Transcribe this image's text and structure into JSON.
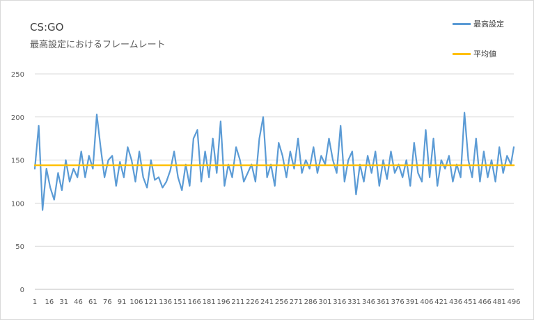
{
  "chart_data": {
    "type": "line",
    "title": "CS:GO",
    "subtitle": "最高設定におけるフレームレート",
    "xlabel": "",
    "ylabel": "",
    "ylim": [
      0,
      250
    ],
    "yticks": [
      0,
      50,
      100,
      150,
      200,
      250
    ],
    "xlim": [
      1,
      496
    ],
    "xticks": [
      1,
      16,
      31,
      46,
      61,
      76,
      91,
      106,
      121,
      136,
      151,
      166,
      181,
      196,
      211,
      226,
      241,
      256,
      271,
      286,
      301,
      316,
      331,
      346,
      361,
      376,
      391,
      406,
      421,
      436,
      451,
      466,
      481,
      496
    ],
    "grid": true,
    "legend_position": "top-right",
    "series": [
      {
        "name": "最高設定",
        "color": "#5b9bd5",
        "x": [
          1,
          5,
          9,
          13,
          17,
          21,
          25,
          29,
          33,
          37,
          41,
          45,
          49,
          53,
          57,
          61,
          65,
          69,
          73,
          77,
          81,
          85,
          89,
          93,
          97,
          101,
          105,
          109,
          113,
          117,
          121,
          125,
          129,
          133,
          137,
          141,
          145,
          149,
          153,
          157,
          161,
          165,
          169,
          173,
          177,
          181,
          185,
          189,
          193,
          197,
          201,
          205,
          209,
          213,
          217,
          221,
          225,
          229,
          233,
          237,
          241,
          245,
          249,
          253,
          257,
          261,
          265,
          269,
          273,
          277,
          281,
          285,
          289,
          293,
          297,
          301,
          305,
          309,
          313,
          317,
          321,
          325,
          329,
          333,
          337,
          341,
          345,
          349,
          353,
          357,
          361,
          365,
          369,
          373,
          377,
          381,
          385,
          389,
          393,
          397,
          401,
          405,
          409,
          413,
          417,
          421,
          425,
          429,
          433,
          437,
          441,
          445,
          449,
          453,
          457,
          461,
          465,
          469,
          473,
          477,
          481,
          485,
          489,
          493,
          496
        ],
        "values": [
          140,
          190,
          92,
          140,
          118,
          104,
          135,
          115,
          150,
          125,
          140,
          130,
          160,
          130,
          155,
          140,
          203,
          165,
          130,
          150,
          155,
          120,
          148,
          130,
          165,
          150,
          125,
          160,
          130,
          118,
          150,
          127,
          130,
          118,
          125,
          138,
          160,
          130,
          115,
          145,
          120,
          175,
          185,
          125,
          160,
          130,
          175,
          135,
          195,
          120,
          145,
          130,
          165,
          150,
          125,
          135,
          145,
          125,
          175,
          200,
          130,
          145,
          120,
          170,
          155,
          130,
          160,
          140,
          175,
          135,
          150,
          140,
          165,
          135,
          155,
          145,
          175,
          150,
          135,
          190,
          125,
          150,
          160,
          110,
          145,
          125,
          155,
          135,
          160,
          120,
          150,
          128,
          160,
          135,
          145,
          130,
          150,
          120,
          170,
          135,
          125,
          185,
          130,
          175,
          120,
          150,
          140,
          155,
          125,
          145,
          130,
          205,
          150,
          130,
          175,
          125,
          160,
          130,
          150,
          125,
          165,
          135,
          155,
          145,
          165
        ]
      },
      {
        "name": "平均値",
        "color": "#ffc000",
        "x": [
          1,
          496
        ],
        "values": [
          144,
          144
        ]
      }
    ]
  }
}
